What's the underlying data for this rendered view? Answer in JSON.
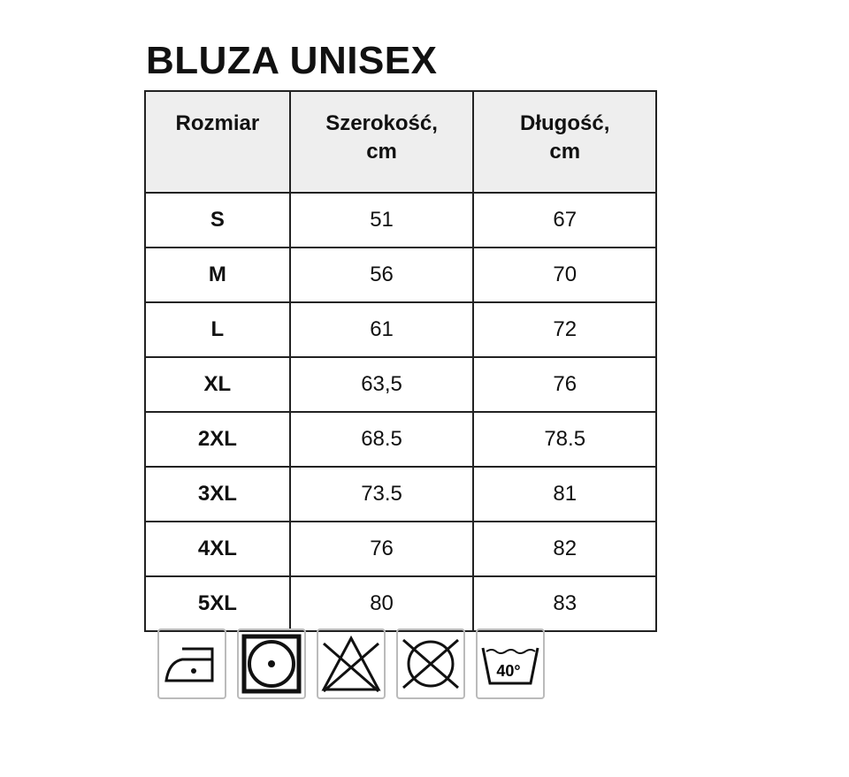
{
  "title": "BLUZA UNISEX",
  "headers": [
    "Rozmiar",
    "Szerokość,\ncm",
    "Długość,\ncm"
  ],
  "header_lines": [
    [
      "Rozmiar"
    ],
    [
      "Szerokość,",
      "cm"
    ],
    [
      "Długość,",
      "cm"
    ]
  ],
  "rows": [
    [
      "S",
      "51",
      "67"
    ],
    [
      "M",
      "56",
      "70"
    ],
    [
      "L",
      "61",
      "72"
    ],
    [
      "XL",
      "63,5",
      "76"
    ],
    [
      "2XL",
      "68.5",
      "78.5"
    ],
    [
      "3XL",
      "73.5",
      "81"
    ],
    [
      "4XL",
      "76",
      "82"
    ],
    [
      "5XL",
      "80",
      "83"
    ]
  ],
  "care_icons": [
    "iron-low-temp-icon",
    "tumble-dry-icon",
    "do-not-bleach-icon",
    "do-not-dry-clean-icon",
    "wash-40-icon"
  ],
  "wash_temp": "40°"
}
